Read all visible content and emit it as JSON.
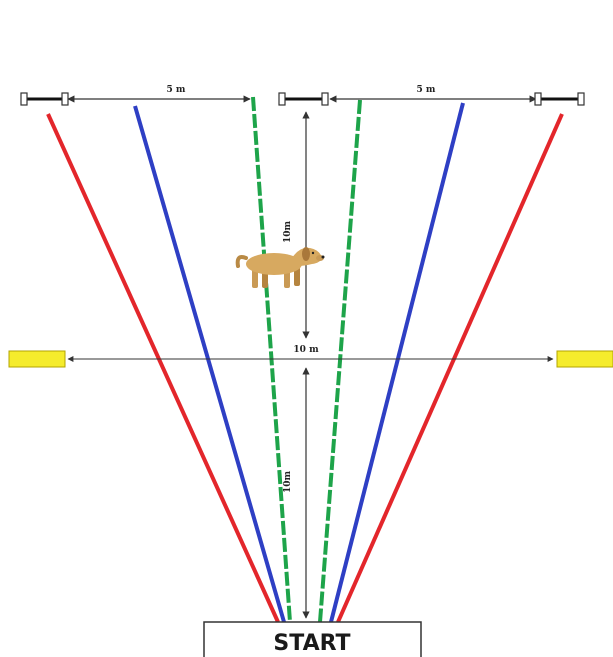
{
  "labels": {
    "top_left_width": "5 m",
    "top_right_width": "5 m",
    "upper_distance": "10m",
    "middle_width": "10 m",
    "lower_distance": "10m",
    "start": "START"
  },
  "colors": {
    "outer_lines": "#e3262b",
    "middle_lines": "#2e3fc4",
    "inner_lines": "#1ea44a",
    "markers": "#f5ec2c",
    "arrows": "#333333"
  },
  "icons": {
    "dog": "dog-icon"
  }
}
